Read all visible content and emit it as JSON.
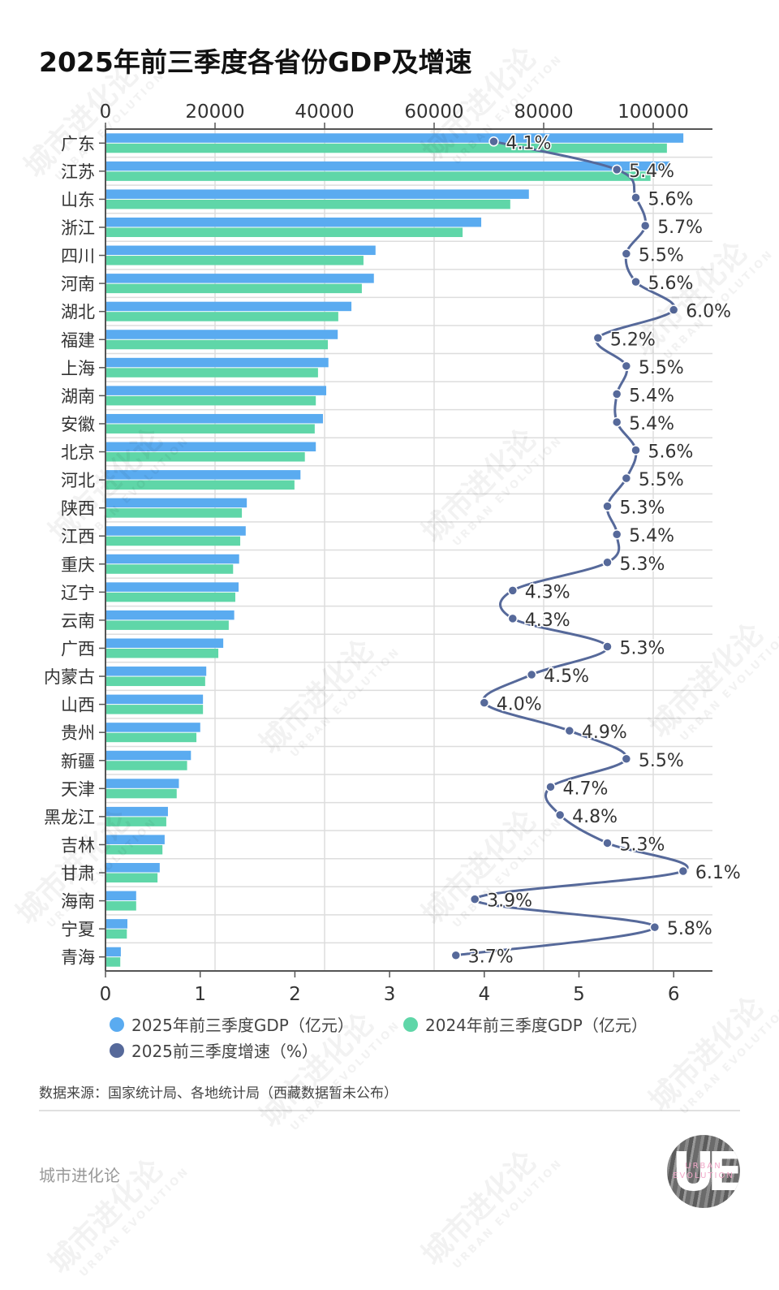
{
  "title": "2025年前三季度各省份GDP及增速",
  "legend": {
    "gdp2025": "2025年前三季度GDP（亿元）",
    "gdp2024": "2024年前三季度GDP（亿元）",
    "growth": "2025前三季度增速（%）"
  },
  "colors": {
    "gdp2025": "#5aabf0",
    "gdp2024": "#5fd6a8",
    "growth": "#56699a",
    "grid": "#dddddd",
    "axis": "#555555"
  },
  "source": "数据来源：国家统计局、各地统计局（西藏数据暂未公布）",
  "brand": "城市进化论",
  "logo": {
    "mark": "UE",
    "line1": "URBAN",
    "line2": "EVOLUTION"
  },
  "watermark": {
    "cn": "城市进化论",
    "en": "URBAN EVOLUTION"
  },
  "chart_data": {
    "type": "bar",
    "orientation": "horizontal",
    "title": "2025年前三季度各省份GDP及增速",
    "categories": [
      "广东",
      "江苏",
      "山东",
      "浙江",
      "四川",
      "河南",
      "湖北",
      "福建",
      "上海",
      "湖南",
      "安徽",
      "北京",
      "河北",
      "陕西",
      "江西",
      "重庆",
      "辽宁",
      "云南",
      "广西",
      "内蒙古",
      "山西",
      "贵州",
      "新疆",
      "天津",
      "黑龙江",
      "吉林",
      "甘肃",
      "海南",
      "宁夏",
      "青海"
    ],
    "series": [
      {
        "name": "2025年前三季度GDP（亿元）",
        "type": "bar",
        "axis": "top",
        "values": [
          105500,
          103000,
          77300,
          68600,
          49300,
          49000,
          44900,
          42400,
          40700,
          40300,
          39700,
          38400,
          35600,
          25800,
          25600,
          24400,
          24300,
          23500,
          21500,
          18400,
          17800,
          17300,
          15600,
          13400,
          11400,
          10800,
          9900,
          5600,
          4000,
          2800
        ]
      },
      {
        "name": "2024年前三季度GDP（亿元）",
        "type": "bar",
        "axis": "top",
        "values": [
          102500,
          99500,
          73900,
          65200,
          47100,
          46800,
          42500,
          40600,
          38800,
          38400,
          38200,
          36400,
          34500,
          24900,
          24600,
          23300,
          23700,
          22500,
          20600,
          18200,
          17800,
          16600,
          14900,
          13000,
          11100,
          10400,
          9500,
          5600,
          3900,
          2700
        ]
      },
      {
        "name": "2025前三季度增速（%）",
        "type": "line",
        "axis": "bottom",
        "values": [
          4.1,
          5.4,
          5.6,
          5.7,
          5.5,
          5.6,
          6.0,
          5.2,
          5.5,
          5.4,
          5.4,
          5.6,
          5.5,
          5.3,
          5.4,
          5.3,
          4.3,
          4.3,
          5.3,
          4.5,
          4.0,
          4.9,
          5.5,
          4.7,
          4.8,
          5.3,
          6.1,
          3.9,
          5.8,
          3.7
        ],
        "labels": [
          "4.1%",
          "5.4%",
          "5.6%",
          "5.7%",
          "5.5%",
          "5.6%",
          "6.0%",
          "5.2%",
          "5.5%",
          "5.4%",
          "5.4%",
          "5.6%",
          "5.5%",
          "5.3%",
          "5.4%",
          "5.3%",
          "4.3%",
          "4.3%",
          "5.3%",
          "4.5%",
          "4.0%",
          "4.9%",
          "5.5%",
          "4.7%",
          "4.8%",
          "5.3%",
          "6.1%",
          "3.9%",
          "5.8%",
          "3.7%"
        ]
      }
    ],
    "top_axis": {
      "ticks": [
        0,
        20000,
        40000,
        60000,
        80000,
        100000
      ],
      "tick_labels": [
        "0",
        "20000",
        "40000",
        "60000",
        "80000",
        "100000"
      ],
      "range": [
        0,
        110600
      ]
    },
    "bottom_axis": {
      "ticks": [
        0,
        1,
        2,
        3,
        4,
        5,
        6
      ],
      "tick_labels": [
        "0",
        "1",
        "2",
        "3",
        "4",
        "5",
        "6"
      ],
      "range": [
        0,
        6.4
      ]
    },
    "grid": true,
    "legend_position": "bottom"
  }
}
